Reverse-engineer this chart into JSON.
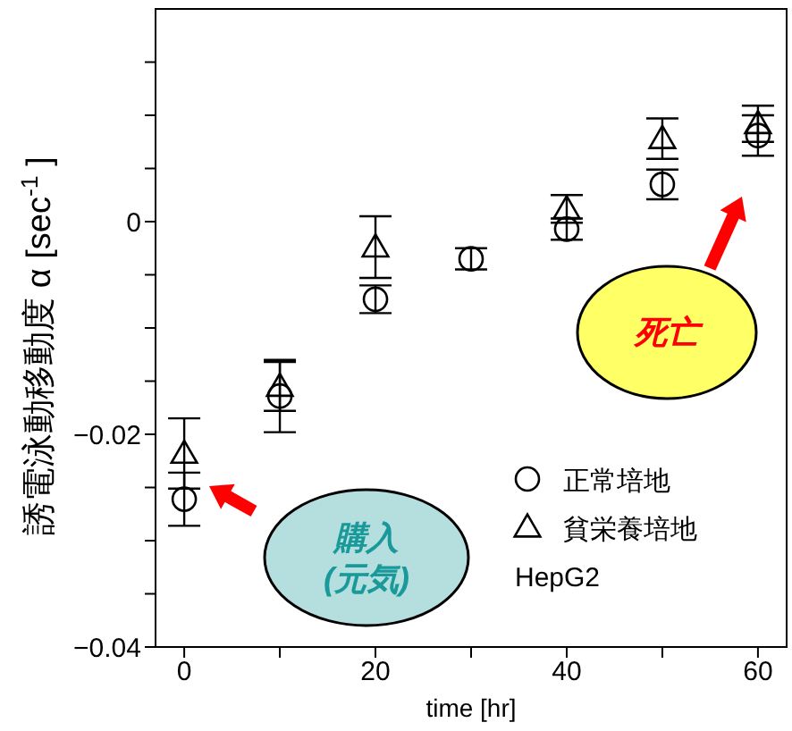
{
  "chart_data": {
    "type": "scatter",
    "xlabel": "time [hr]",
    "ylabel": "誘電泳動移動度  α [sec$^{-1}$]",
    "x": [
      0,
      10,
      20,
      30,
      40,
      50,
      60
    ],
    "series": [
      {
        "name": "正常培地",
        "color": "#000000",
        "marker": "circle",
        "values": [
          -0.0261,
          -0.0164,
          -0.0073,
          -0.0035,
          -0.0007,
          0.0035,
          0.0081
        ],
        "errors": [
          0.0025,
          0.0034,
          0.0013,
          0.001,
          0.001,
          0.0014,
          0.0019
        ]
      },
      {
        "name": "貧栄養培地",
        "color": "#000000",
        "marker": "triangle",
        "values": [
          -0.0218,
          -0.0155,
          -0.0024,
          null,
          0.0012,
          0.0078,
          0.0092
        ],
        "errors": [
          0.0033,
          0.0023,
          0.0029,
          null,
          0.0013,
          0.0019,
          0.0017
        ]
      }
    ],
    "xlim": [
      -3,
      63
    ],
    "xticks": [
      0,
      {
        "value": 10,
        "label": null
      },
      20,
      {
        "value": 30,
        "label": null
      },
      40,
      {
        "value": 50,
        "label": null
      },
      60
    ],
    "ylim": [
      -0.04,
      0.02
    ],
    "yticks": [
      -0.04,
      {
        "value": -0.035,
        "label": null
      },
      {
        "value": -0.03,
        "label": null
      },
      {
        "value": -0.025,
        "label": null
      },
      -0.02,
      {
        "value": -0.015,
        "label": null
      },
      {
        "value": -0.01,
        "label": null
      },
      {
        "value": -0.005,
        "label": null
      },
      0,
      {
        "value": 0.005,
        "label": null
      },
      {
        "value": 0.01,
        "label": null
      },
      {
        "value": 0.015,
        "label": null
      }
    ],
    "legend": "bottom right",
    "annotations": [
      "購入\n(元気)",
      "死亡",
      "HepG2"
    ]
  }
}
